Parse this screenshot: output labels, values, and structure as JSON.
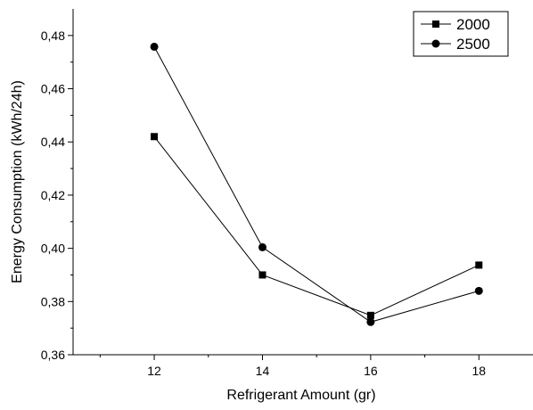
{
  "chart_data": {
    "type": "line",
    "title": "",
    "xlabel": "Refrigerant Amount (gr)",
    "ylabel": "Energy Consumption (kWh/24h)",
    "x": [
      12,
      14,
      16,
      18
    ],
    "xlim": [
      10.5,
      19
    ],
    "ylim": [
      0.36,
      0.49
    ],
    "xticks": [
      12,
      14,
      16,
      18
    ],
    "x_tick_labels": [
      "12",
      "14",
      "16",
      "18"
    ],
    "yticks": [
      0.36,
      0.38,
      0.4,
      0.42,
      0.44,
      0.46,
      0.48
    ],
    "y_tick_labels": [
      "0,36",
      "0,38",
      "0,40",
      "0,42",
      "0,44",
      "0,46",
      "0,48"
    ],
    "grid": false,
    "legend_position": "top-right",
    "series": [
      {
        "name": "2000",
        "marker": "square",
        "color": "#000000",
        "values": [
          0.442,
          0.39,
          0.3748,
          0.3937
        ]
      },
      {
        "name": "2500",
        "marker": "circle",
        "color": "#000000",
        "values": [
          0.4758,
          0.4004,
          0.3723,
          0.384
        ]
      }
    ]
  }
}
